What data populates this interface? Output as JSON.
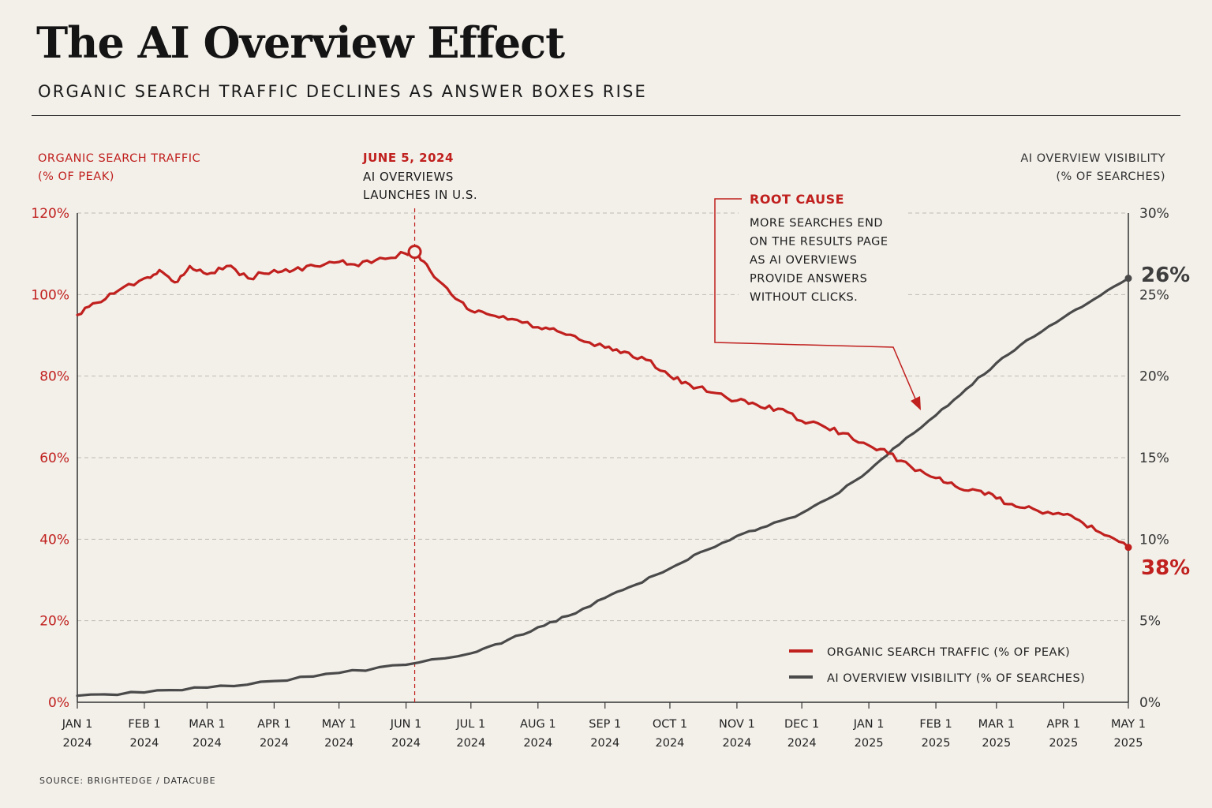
{
  "header": {
    "title": "The AI Overview Effect",
    "subtitle": "ORGANIC SEARCH TRAFFIC DECLINES AS ANSWER BOXES RISE"
  },
  "colors": {
    "red": "#c0201e",
    "gray": "#4a4a4a",
    "grid": "#bdbab3",
    "axis": "#333333"
  },
  "chart_data": {
    "type": "line",
    "title": "",
    "left_axis": {
      "label_line1": "ORGANIC SEARCH TRAFFIC",
      "label_line2": "(% OF PEAK)",
      "range": [
        0,
        120
      ],
      "ticks": [
        0,
        20,
        40,
        60,
        80,
        100,
        120
      ],
      "tick_labels": [
        "0%",
        "20%",
        "40%",
        "60%",
        "80%",
        "100%",
        "120%"
      ]
    },
    "right_axis": {
      "label_line1": "AI OVERVIEW VISIBILITY",
      "label_line2": "(% OF SEARCHES)",
      "range": [
        0,
        30
      ],
      "ticks": [
        0,
        5,
        10,
        15,
        20,
        25,
        30
      ],
      "tick_labels": [
        "0%",
        "5%",
        "10%",
        "15%",
        "20%",
        "25%",
        "30%"
      ]
    },
    "x_axis": {
      "range": [
        "2024-01-01",
        "2025-05-01"
      ],
      "tick_dates": [
        "2024-01-01",
        "2024-02-01",
        "2024-03-01",
        "2024-04-01",
        "2024-05-01",
        "2024-06-01",
        "2024-07-01",
        "2024-08-01",
        "2024-09-01",
        "2024-10-01",
        "2024-11-01",
        "2024-12-01",
        "2025-01-01",
        "2025-02-01",
        "2025-03-01",
        "2025-04-01",
        "2025-05-01"
      ],
      "tick_labels": [
        [
          "JAN 1",
          "2024"
        ],
        [
          "FEB 1",
          "2024"
        ],
        [
          "MAR 1",
          "2024"
        ],
        [
          "APR 1",
          "2024"
        ],
        [
          "MAY 1",
          "2024"
        ],
        [
          "JUN 1",
          "2024"
        ],
        [
          "JUL 1",
          "2024"
        ],
        [
          "AUG 1",
          "2024"
        ],
        [
          "SEP 1",
          "2024"
        ],
        [
          "OCT 1",
          "2024"
        ],
        [
          "NOV 1",
          "2024"
        ],
        [
          "DEC 1",
          "2024"
        ],
        [
          "JAN 1",
          "2025"
        ],
        [
          "FEB 1",
          "2025"
        ],
        [
          "MAR 1",
          "2025"
        ],
        [
          "APR 1",
          "2025"
        ],
        [
          "MAY 1",
          "2025"
        ]
      ]
    },
    "grid": true,
    "series": [
      {
        "name": "ORGANIC SEARCH TRAFFIC (% OF PEAK)",
        "axis": "left",
        "color": "#c0201e",
        "points": [
          [
            "2024-01-01",
            95
          ],
          [
            "2024-01-10",
            98
          ],
          [
            "2024-01-20",
            101
          ],
          [
            "2024-02-01",
            104
          ],
          [
            "2024-02-08",
            106
          ],
          [
            "2024-02-15",
            103
          ],
          [
            "2024-02-22",
            107
          ],
          [
            "2024-03-01",
            105
          ],
          [
            "2024-03-10",
            107
          ],
          [
            "2024-03-20",
            104
          ],
          [
            "2024-04-01",
            106
          ],
          [
            "2024-04-10",
            106
          ],
          [
            "2024-04-20",
            107
          ],
          [
            "2024-05-01",
            108
          ],
          [
            "2024-05-10",
            107
          ],
          [
            "2024-05-20",
            109
          ],
          [
            "2024-06-01",
            110
          ],
          [
            "2024-06-05",
            110.5
          ],
          [
            "2024-06-12",
            106
          ],
          [
            "2024-06-22",
            100
          ],
          [
            "2024-07-01",
            96
          ],
          [
            "2024-07-10",
            95
          ],
          [
            "2024-07-20",
            94
          ],
          [
            "2024-08-01",
            92
          ],
          [
            "2024-08-10",
            91
          ],
          [
            "2024-08-20",
            89
          ],
          [
            "2024-09-01",
            87
          ],
          [
            "2024-09-10",
            86
          ],
          [
            "2024-09-20",
            84
          ],
          [
            "2024-10-01",
            80
          ],
          [
            "2024-10-10",
            78
          ],
          [
            "2024-10-20",
            76
          ],
          [
            "2024-11-01",
            74
          ],
          [
            "2024-11-10",
            73
          ],
          [
            "2024-11-20",
            72
          ],
          [
            "2024-12-01",
            69
          ],
          [
            "2024-12-10",
            68
          ],
          [
            "2024-12-20",
            66
          ],
          [
            "2025-01-01",
            63
          ],
          [
            "2025-01-10",
            61
          ],
          [
            "2025-01-20",
            58
          ],
          [
            "2025-02-01",
            55
          ],
          [
            "2025-02-10",
            53
          ],
          [
            "2025-02-20",
            52
          ],
          [
            "2025-03-01",
            50
          ],
          [
            "2025-03-10",
            48
          ],
          [
            "2025-03-20",
            47
          ],
          [
            "2025-04-01",
            46
          ],
          [
            "2025-04-10",
            44
          ],
          [
            "2025-04-20",
            41
          ],
          [
            "2025-05-01",
            38
          ]
        ]
      },
      {
        "name": "AI OVERVIEW VISIBILITY (% OF SEARCHES)",
        "axis": "right",
        "color": "#4a4a4a",
        "points": [
          [
            "2024-01-01",
            0.4
          ],
          [
            "2024-02-01",
            0.6
          ],
          [
            "2024-03-01",
            0.9
          ],
          [
            "2024-04-01",
            1.3
          ],
          [
            "2024-05-01",
            1.8
          ],
          [
            "2024-06-01",
            2.3
          ],
          [
            "2024-07-01",
            3.0
          ],
          [
            "2024-07-15",
            3.6
          ],
          [
            "2024-08-01",
            4.6
          ],
          [
            "2024-08-15",
            5.3
          ],
          [
            "2024-09-01",
            6.4
          ],
          [
            "2024-09-15",
            7.2
          ],
          [
            "2024-10-01",
            8.2
          ],
          [
            "2024-10-15",
            9.2
          ],
          [
            "2024-11-01",
            10.2
          ],
          [
            "2024-11-15",
            10.8
          ],
          [
            "2024-12-01",
            11.6
          ],
          [
            "2024-12-15",
            12.6
          ],
          [
            "2025-01-01",
            14.2
          ],
          [
            "2025-01-15",
            15.8
          ],
          [
            "2025-02-01",
            17.6
          ],
          [
            "2025-02-15",
            19.2
          ],
          [
            "2025-03-01",
            20.8
          ],
          [
            "2025-03-15",
            22.2
          ],
          [
            "2025-04-01",
            23.6
          ],
          [
            "2025-04-15",
            24.7
          ],
          [
            "2025-05-01",
            26
          ]
        ]
      }
    ],
    "end_labels": {
      "red": "38%",
      "gray": "26%"
    },
    "annotations": {
      "launch": {
        "date": "2024-06-05",
        "value": 110.5,
        "line1": "JUNE 5, 2024",
        "line2": "AI OVERVIEWS",
        "line3": "LAUNCHES IN U.S."
      },
      "root_cause": {
        "title": "ROOT CAUSE",
        "lines": [
          "MORE SEARCHES END",
          "ON THE RESULTS PAGE",
          "AS AI OVERVIEWS",
          "PROVIDE ANSWERS",
          "WITHOUT CLICKS."
        ]
      }
    },
    "legend_position": "bottom-right"
  },
  "footer": {
    "source": "SOURCE: BRIGHTEDGE / DATACUBE"
  }
}
